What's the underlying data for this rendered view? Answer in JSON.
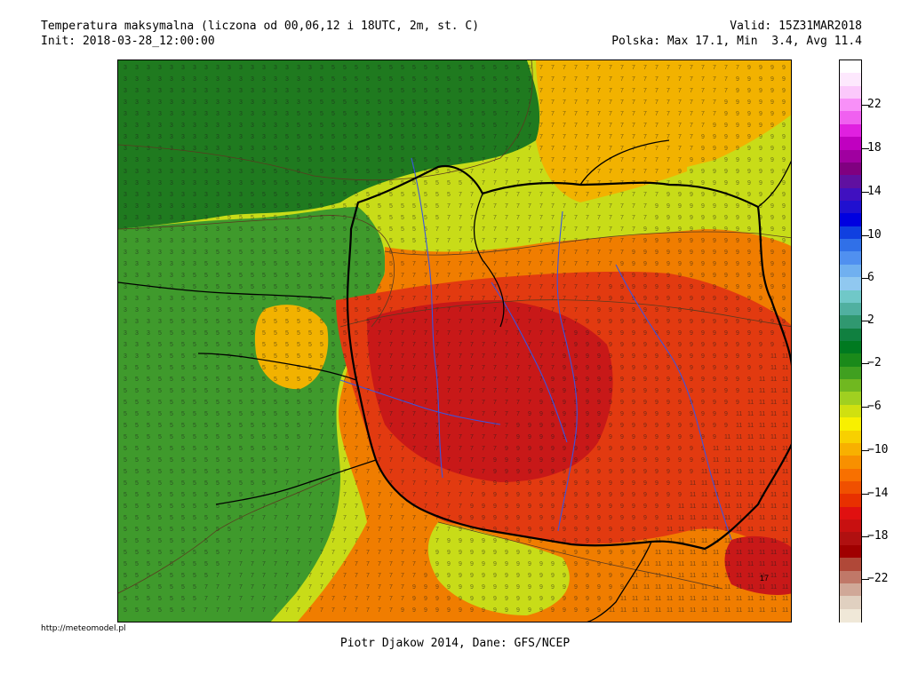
{
  "header": {
    "title": "Temperatura maksymalna (liczona od 00,06,12 i 18UTC, 2m, st. C)",
    "init": "Init: 2018-03-28_12:00:00",
    "valid": "Valid: 15Z31MAR2018",
    "stats": "Polska: Max 17.1, Min  3.4, Avg 11.4"
  },
  "footer": {
    "url": "http://meteomodel.pl",
    "credit": "Piotr Djakow 2014, Dane: GFS/NCEP"
  },
  "legend": {
    "colors": [
      "#ffffff",
      "#fde8fd",
      "#fbc8fb",
      "#f890f8",
      "#f060f0",
      "#e020e0",
      "#c000c0",
      "#a000a0",
      "#800080",
      "#6010a0",
      "#4010c0",
      "#2010d0",
      "#0000e0",
      "#1040e0",
      "#3070e8",
      "#5090f0",
      "#70b0f0",
      "#90c8f0",
      "#70c8c8",
      "#50b0a0",
      "#309870",
      "#108040",
      "#007a20",
      "#1a8a1a",
      "#40a020",
      "#70b820",
      "#a0d020",
      "#d0e010",
      "#f8f000",
      "#f8d000",
      "#f8b000",
      "#f89000",
      "#f87000",
      "#f05000",
      "#e83000",
      "#e01010",
      "#c81010",
      "#b01010",
      "#a00000",
      "#b04838",
      "#c07868",
      "#d0a898",
      "#e0d0c0",
      "#f0e8d8"
    ],
    "labels": [
      "22",
      "18",
      "14",
      "10",
      "6",
      "2",
      "−2",
      "−6",
      "−10",
      "−14",
      "−18",
      "−22"
    ]
  },
  "map": {
    "contour_values": [
      "3",
      "5",
      "7",
      "9",
      "11",
      "13"
    ],
    "peak_label": "17",
    "colors": {
      "cold": "#1f7a1f",
      "cool": "#3f9a2c",
      "mild": "#84bf2a",
      "lime": "#c8dc18",
      "warm": "#f2b200",
      "orange": "#f07d00",
      "hot": "#e23a10",
      "peak": "#c81818",
      "border": "#000000",
      "river": "#3a55e0",
      "contour": "#5a3a20"
    }
  }
}
